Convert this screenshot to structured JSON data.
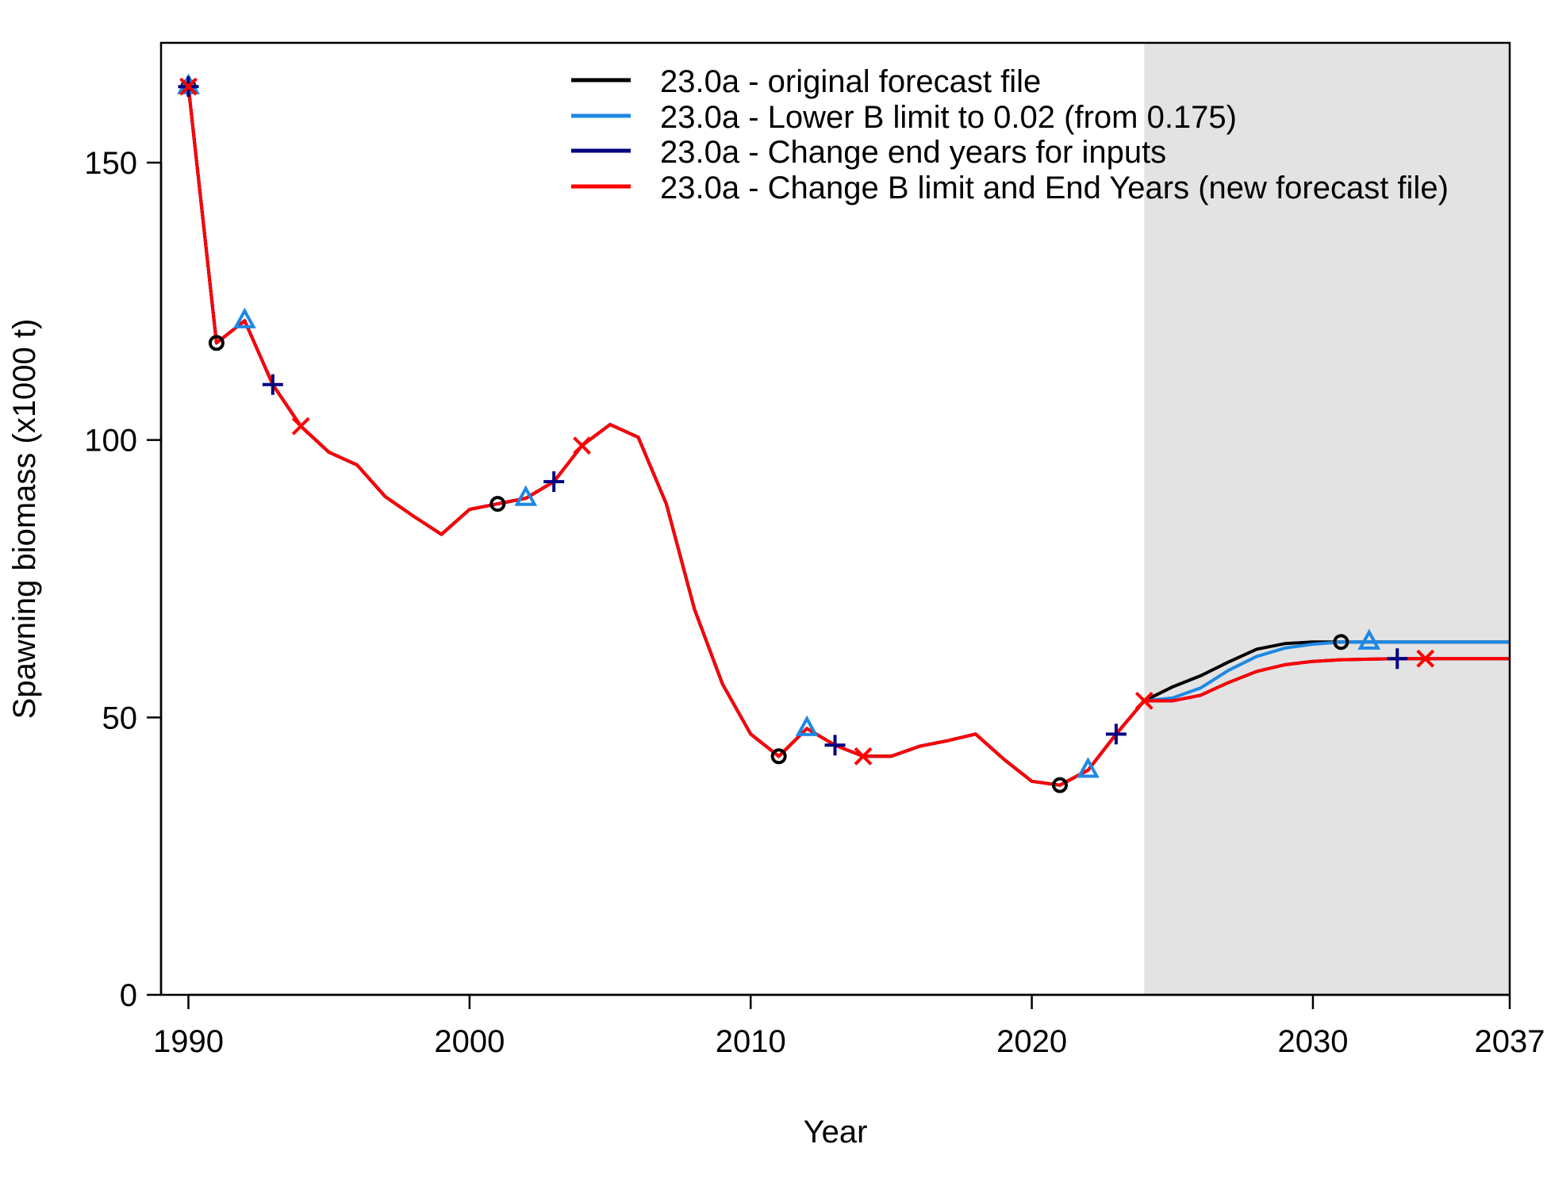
{
  "chart_data": {
    "type": "line",
    "xlabel": "Year",
    "ylabel": "Spawning biomass (x1000 t)",
    "xlim": [
      1989,
      2037
    ],
    "ylim": [
      0,
      172
    ],
    "x_ticks": [
      1990,
      2000,
      2010,
      2020,
      2030,
      2037
    ],
    "y_ticks": [
      0,
      50,
      100,
      150
    ],
    "forecast_shading_start": 2024,
    "legend_position": "top-right",
    "x": [
      1990,
      1991,
      1992,
      1993,
      1994,
      1995,
      1996,
      1997,
      1998,
      1999,
      2000,
      2001,
      2002,
      2003,
      2004,
      2005,
      2006,
      2007,
      2008,
      2009,
      2010,
      2011,
      2012,
      2013,
      2014,
      2015,
      2016,
      2017,
      2018,
      2019,
      2020,
      2021,
      2022,
      2023,
      2024,
      2025,
      2026,
      2027,
      2028,
      2029,
      2030,
      2031,
      2032,
      2033,
      2034,
      2035,
      2036,
      2037
    ],
    "series": [
      {
        "name": "23.0a - original forecast file",
        "color": "#000000",
        "marker": "circle",
        "marker_years": [
          1990,
          1991,
          2001,
          2011,
          2021,
          2031
        ],
        "values": [
          163.7,
          117.5,
          121.5,
          110,
          102.5,
          97.8,
          95.5,
          89.8,
          86.3,
          83,
          87.5,
          88.5,
          89.5,
          92.5,
          99,
          102.8,
          100.5,
          88.5,
          69.5,
          56,
          47,
          43,
          48,
          45,
          43,
          43,
          44.8,
          45.8,
          47,
          42.5,
          38.5,
          37.8,
          40.5,
          47,
          53,
          55.5,
          57.5,
          60,
          62.3,
          63.3,
          63.6,
          63.6,
          63.6,
          63.6,
          63.6,
          63.6,
          63.6,
          63.6
        ]
      },
      {
        "name": "23.0a - Lower B limit to 0.02 (from 0.175)",
        "color": "#1E88E5",
        "marker": "triangle",
        "marker_years": [
          1990,
          1992,
          2002,
          2012,
          2022,
          2032
        ],
        "values": [
          163.7,
          117.5,
          121.5,
          110,
          102.5,
          97.8,
          95.5,
          89.8,
          86.3,
          83,
          87.5,
          88.5,
          89.5,
          92.5,
          99,
          102.8,
          100.5,
          88.5,
          69.5,
          56,
          47,
          43,
          48,
          45,
          43,
          43,
          44.8,
          45.8,
          47,
          42.5,
          38.5,
          37.8,
          40.5,
          47,
          53,
          53.5,
          55.3,
          58.5,
          61,
          62.5,
          63.2,
          63.6,
          63.6,
          63.6,
          63.6,
          63.6,
          63.6,
          63.6
        ]
      },
      {
        "name": "23.0a - Change end years for inputs",
        "color": "#000080",
        "marker": "plus",
        "marker_years": [
          1990,
          1993,
          2003,
          2013,
          2023,
          2033
        ],
        "values": [
          163.7,
          117.5,
          121.5,
          110,
          102.5,
          97.8,
          95.5,
          89.8,
          86.3,
          83,
          87.5,
          88.5,
          89.5,
          92.5,
          99,
          102.8,
          100.5,
          88.5,
          69.5,
          56,
          47,
          43,
          48,
          45,
          43,
          43,
          44.8,
          45.8,
          47,
          42.5,
          38.5,
          37.8,
          40.5,
          47,
          53,
          53,
          54,
          56.3,
          58.3,
          59.5,
          60.1,
          60.4,
          60.5,
          60.6,
          60.6,
          60.6,
          60.6,
          60.6
        ]
      },
      {
        "name": "23.0a - Change B limit and End Years (new forecast file)",
        "color": "#FF0000",
        "marker": "x",
        "marker_years": [
          1990,
          1994,
          2004,
          2014,
          2024,
          2034
        ],
        "values": [
          163.7,
          117.5,
          121.5,
          110,
          102.5,
          97.8,
          95.5,
          89.8,
          86.3,
          83,
          87.5,
          88.5,
          89.5,
          92.5,
          99,
          102.8,
          100.5,
          88.5,
          69.5,
          56,
          47,
          43,
          48,
          45,
          43,
          43,
          44.8,
          45.8,
          47,
          42.5,
          38.5,
          37.8,
          40.5,
          47,
          53,
          53,
          54,
          56.3,
          58.3,
          59.5,
          60.1,
          60.4,
          60.5,
          60.6,
          60.6,
          60.6,
          60.6,
          60.6
        ]
      }
    ]
  }
}
